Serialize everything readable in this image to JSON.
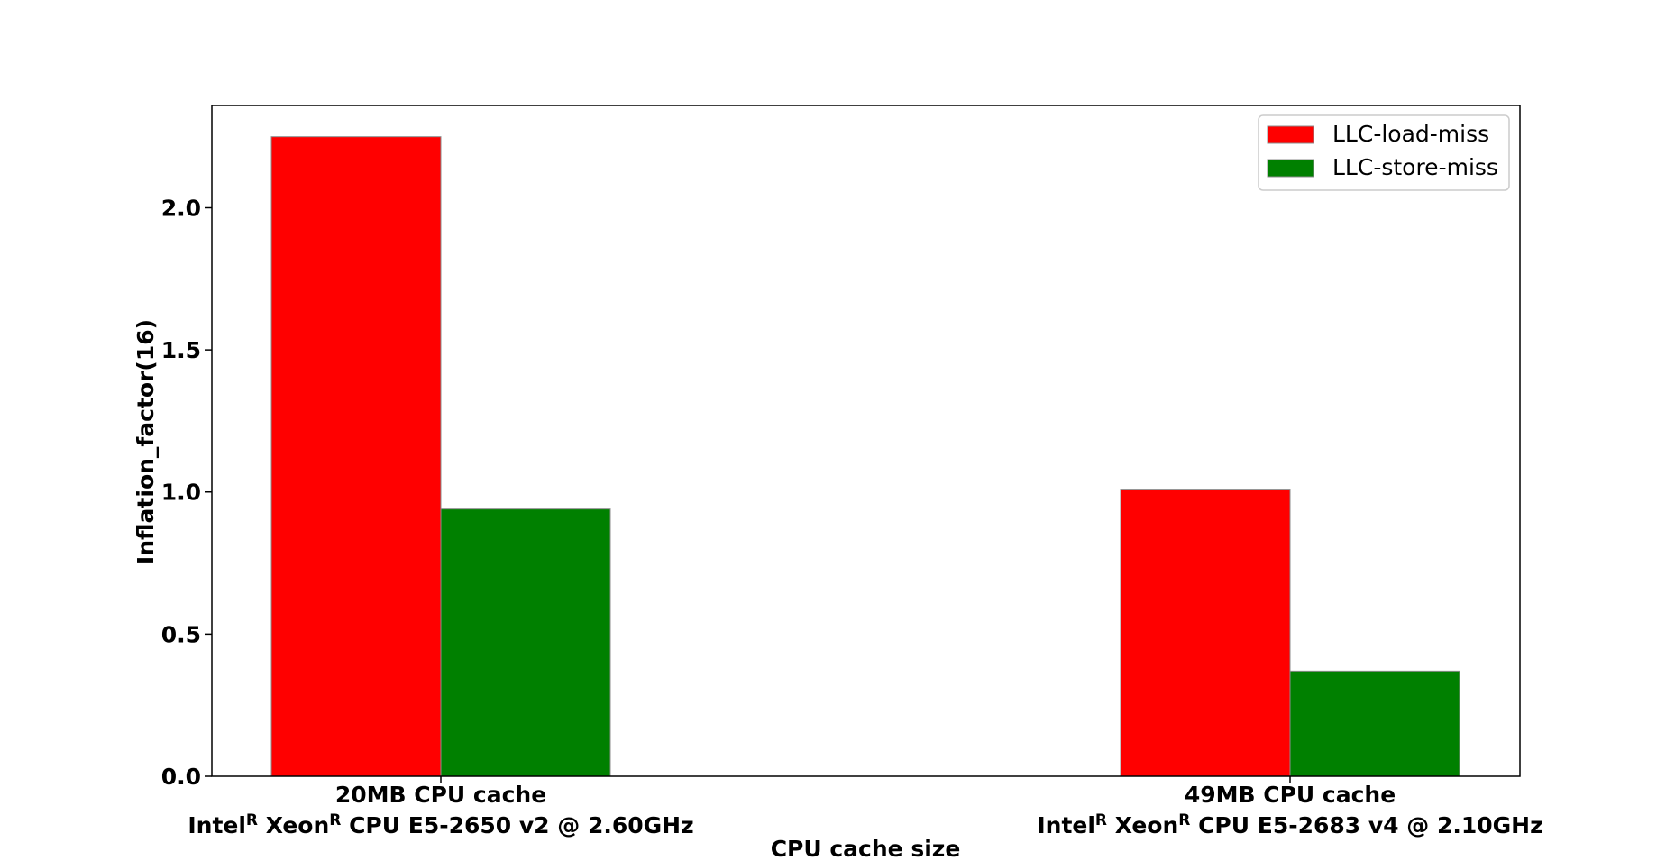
{
  "chart_data": {
    "type": "bar",
    "xlabel": "CPU cache size",
    "ylabel": "Inflation_factor(16)",
    "ylim": [
      0,
      2.36
    ],
    "yticks": [
      "0.0",
      "0.5",
      "1.0",
      "1.5",
      "2.0"
    ],
    "categories": [
      {
        "line1": "20MB CPU cache",
        "cpu": {
          "brand": "Intel",
          "sup1": "R",
          "mid": " Xeon",
          "sup2": "R",
          "rest": " CPU E5-2650 v2 @ 2.60GHz"
        }
      },
      {
        "line1": "49MB CPU cache",
        "cpu": {
          "brand": "Intel",
          "sup1": "R",
          "mid": " Xeon",
          "sup2": "R",
          "rest": " CPU E5-2683 v4 @ 2.10GHz"
        }
      }
    ],
    "series": [
      {
        "name": "LLC-load-miss",
        "color": "#ff0000",
        "values": [
          2.25,
          1.01
        ]
      },
      {
        "name": "LLC-store-miss",
        "color": "#008000",
        "values": [
          0.94,
          0.37
        ]
      }
    ],
    "legend": "top-right",
    "grid": false
  }
}
